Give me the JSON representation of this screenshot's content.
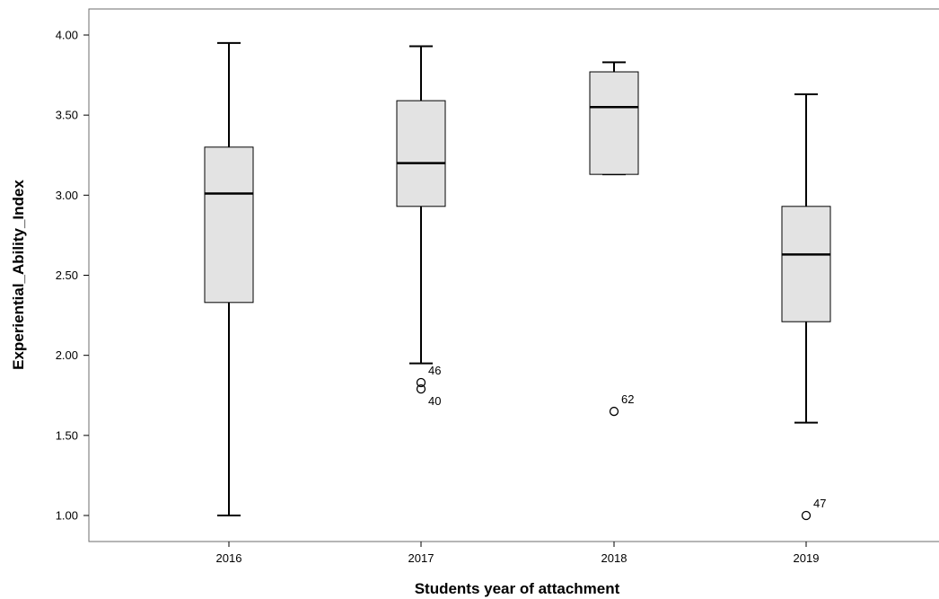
{
  "chart_data": {
    "type": "boxplot",
    "xlabel": "Students year of attachment",
    "ylabel": "Experiential_Ability_Index",
    "ylim": [
      0.82,
      4.18
    ],
    "yticks": [
      1.0,
      1.5,
      2.0,
      2.5,
      3.0,
      3.5,
      4.0
    ],
    "ytick_labels": [
      "1.00",
      "1.50",
      "2.00",
      "2.50",
      "3.00",
      "3.50",
      "4.00"
    ],
    "grid": false,
    "colors": {
      "box_fill": "#e3e3e3",
      "line": "#000000",
      "frame": "#6e6e6e"
    },
    "categories": [
      "2016",
      "2017",
      "2018",
      "2019"
    ],
    "boxes": [
      {
        "category": "2016",
        "whisker_low": 1.0,
        "q1": 2.33,
        "median": 3.01,
        "q3": 3.3,
        "whisker_high": 3.95,
        "outliers": []
      },
      {
        "category": "2017",
        "whisker_low": 1.95,
        "q1": 2.93,
        "median": 3.2,
        "q3": 3.59,
        "whisker_high": 3.93,
        "outliers": [
          {
            "value": 1.83,
            "label": "46"
          },
          {
            "value": 1.79,
            "label": "40"
          }
        ]
      },
      {
        "category": "2018",
        "whisker_low": 3.13,
        "q1": 3.13,
        "median": 3.55,
        "q3": 3.77,
        "whisker_high": 3.83,
        "outliers": [
          {
            "value": 1.65,
            "label": "62"
          }
        ]
      },
      {
        "category": "2019",
        "whisker_low": 1.58,
        "q1": 2.21,
        "median": 2.63,
        "q3": 2.93,
        "whisker_high": 3.63,
        "outliers": [
          {
            "value": 1.0,
            "label": "47"
          }
        ]
      }
    ]
  }
}
